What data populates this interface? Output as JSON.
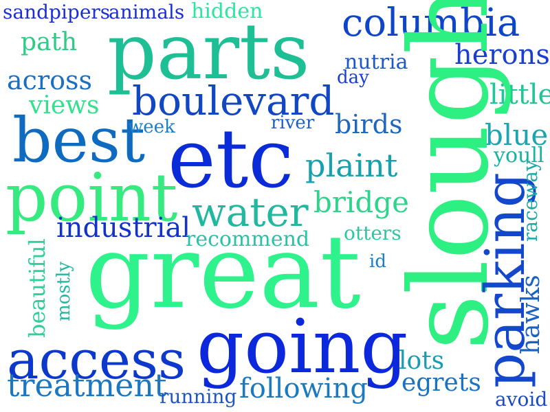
{
  "words": [
    {
      "id": "word-sandpipers",
      "text": "sandpipers",
      "color": "#1a2fd6"
    },
    {
      "id": "word-animals",
      "text": "animals",
      "color": "#1a2fd6"
    },
    {
      "id": "word-hidden",
      "text": "hidden",
      "color": "#2ee6a0"
    },
    {
      "id": "word-parts",
      "text": "parts",
      "color": "#1fbf96"
    },
    {
      "id": "word-columbia",
      "text": "columbia",
      "color": "#0f45c8"
    },
    {
      "id": "word-path",
      "text": "path",
      "color": "#2ecb86"
    },
    {
      "id": "word-nutria",
      "text": "nutria",
      "color": "#1e57c9"
    },
    {
      "id": "word-herons",
      "text": "herons",
      "color": "#1a3fd0"
    },
    {
      "id": "word-across",
      "text": "across",
      "color": "#1a6fc0"
    },
    {
      "id": "word-day",
      "text": "day",
      "color": "#1a3fd0"
    },
    {
      "id": "word-boulevard",
      "text": "boulevard",
      "color": "#1147c2"
    },
    {
      "id": "word-little",
      "text": "little",
      "color": "#22c49a"
    },
    {
      "id": "word-views",
      "text": "views",
      "color": "#33e08c"
    },
    {
      "id": "word-slough",
      "text": "slough",
      "color": "#2ef082"
    },
    {
      "id": "word-best",
      "text": "best",
      "color": "#0f6bc0"
    },
    {
      "id": "word-week",
      "text": "week",
      "color": "#1a7ec8"
    },
    {
      "id": "word-river",
      "text": "river",
      "color": "#1a60c5"
    },
    {
      "id": "word-birds",
      "text": "birds",
      "color": "#1e67bf"
    },
    {
      "id": "word-blue",
      "text": "blue",
      "color": "#1aa6b0"
    },
    {
      "id": "word-etc",
      "text": "etc",
      "color": "#0a2bd8"
    },
    {
      "id": "word-plaint",
      "text": "plaint",
      "color": "#17a1ad"
    },
    {
      "id": "word-youll",
      "text": "youll",
      "color": "#16b3a0"
    },
    {
      "id": "word-point",
      "text": "point",
      "color": "#35ea7f"
    },
    {
      "id": "word-parking",
      "text": "parking",
      "color": "#1448cc"
    },
    {
      "id": "word-raceway",
      "text": "raceway",
      "color": "#1da9a8"
    },
    {
      "id": "word-water",
      "text": "water",
      "color": "#20b9a0"
    },
    {
      "id": "word-bridge",
      "text": "bridge",
      "color": "#2fd48c"
    },
    {
      "id": "word-industrial",
      "text": "industrial",
      "color": "#1232c8"
    },
    {
      "id": "word-otters",
      "text": "otters",
      "color": "#2ac7a0"
    },
    {
      "id": "word-recommend",
      "text": "recommend",
      "color": "#28c3a6"
    },
    {
      "id": "word-beautiful",
      "text": "beautiful",
      "color": "#2fcf98"
    },
    {
      "id": "word-great",
      "text": "great",
      "color": "#2ef38c"
    },
    {
      "id": "word-id",
      "text": "id",
      "color": "#1a7fc4"
    },
    {
      "id": "word-mostly",
      "text": "mostly",
      "color": "#20b7a2"
    },
    {
      "id": "word-hawks",
      "text": "hawks",
      "color": "#1a62c2"
    },
    {
      "id": "word-access",
      "text": "access",
      "color": "#0d38cc"
    },
    {
      "id": "word-going",
      "text": "going",
      "color": "#0c28dc"
    },
    {
      "id": "word-lots",
      "text": "lots",
      "color": "#1a9bb4"
    },
    {
      "id": "word-treatment",
      "text": "treatment",
      "color": "#1a77c0"
    },
    {
      "id": "word-egrets",
      "text": "egrets",
      "color": "#1a73c2"
    },
    {
      "id": "word-following",
      "text": "following",
      "color": "#1a7ac0"
    },
    {
      "id": "word-running",
      "text": "running",
      "color": "#1d55c8"
    },
    {
      "id": "word-avoid",
      "text": "avoid",
      "color": "#1a49cc"
    }
  ]
}
